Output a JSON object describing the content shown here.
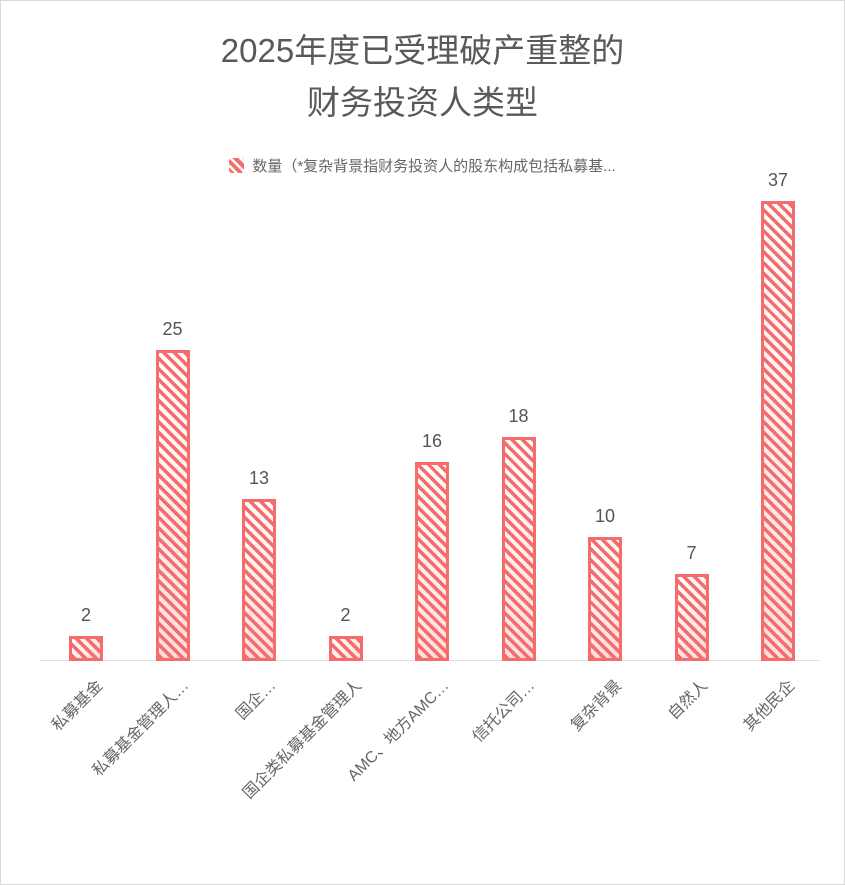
{
  "title": {
    "line1": "2025年度已受理破产重整的",
    "line2": "财务投资人类型"
  },
  "legend": {
    "label": "数量（*复杂背景指财务投资人的股东构成包括私募基..."
  },
  "chart_data": {
    "type": "bar",
    "title": "2025年度已受理破产重整的财务投资人类型",
    "series_name": "数量",
    "categories": [
      "私募基金",
      "私募基金管理人…",
      "国企…",
      "国企类私募基金管理人",
      "AMC、地方AMC…",
      "信托公司…",
      "复杂背景",
      "自然人",
      "其他民企"
    ],
    "values": [
      2,
      25,
      13,
      2,
      16,
      18,
      10,
      7,
      37
    ],
    "xlabel": "",
    "ylabel": "",
    "ylim": [
      0,
      40
    ],
    "grid": false,
    "legend_position": "top-center",
    "value_labels": true,
    "bar_pattern": "diagonal-hatch",
    "x_label_rotation": 45
  },
  "colors": {
    "bar": "#f56c6c",
    "axis_line": "#e2e2e2",
    "title_text": "#595959",
    "category_text": "#666666",
    "value_text": "#555555",
    "frame_border": "#d9d9d9"
  }
}
